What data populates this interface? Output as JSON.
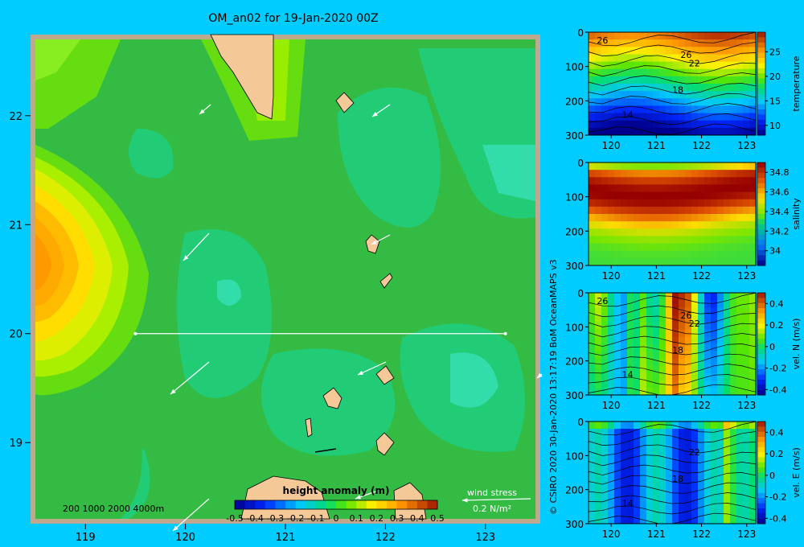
{
  "title": "OM_an02 for 19-Jan-2020 00Z",
  "credit": "© CSIRO 2020   30-Jan-2020 13:17:19 BoM OceanMAPS v3",
  "colors": {
    "background": "#00ccff",
    "frame": "#c0a88c",
    "land": "#f5c898",
    "land_dark": "#c8a888",
    "arrow": "#ffffff"
  },
  "chart_data": [
    {
      "type": "heatmap",
      "name": "map",
      "xlim": [
        118.5,
        123.5
      ],
      "ylim": [
        18.3,
        22.7
      ],
      "xticks": [
        119,
        120,
        121,
        122,
        123
      ],
      "yticks": [
        19,
        20,
        21,
        22
      ],
      "colorbar": {
        "label": "height anomaly (m)",
        "range": [
          -0.5,
          0.5
        ],
        "ticks": [
          "-0.5",
          "-0.4",
          "-0.3",
          "-0.2",
          "-0.1",
          "0",
          "0.1",
          "0.2",
          "0.3",
          "0.4",
          "0.5"
        ]
      },
      "depth_legend": "200  1000  2000  4000m",
      "wind_stress_label": "wind stress",
      "wind_stress_scale": "0.2 N/m²",
      "section_line": {
        "lat": 20.0,
        "lon": [
          119.5,
          123.2
        ]
      }
    },
    {
      "type": "heatmap",
      "name": "temperature",
      "ylabel": "temperature",
      "ylim": [
        300,
        0
      ],
      "yticks": [
        0,
        100,
        200,
        300
      ],
      "xticks": [
        120,
        121,
        122,
        123
      ],
      "colorbar_range": [
        8,
        29
      ],
      "colorbar_ticks": [
        "10",
        "15",
        "20",
        "25"
      ],
      "contour_labels": [
        "26",
        "26",
        "22",
        "18",
        "14"
      ]
    },
    {
      "type": "heatmap",
      "name": "salinity",
      "ylabel": "salinity",
      "ylim": [
        300,
        0
      ],
      "yticks": [
        0,
        100,
        200,
        300
      ],
      "xticks": [
        120,
        121,
        122,
        123
      ],
      "colorbar_range": [
        33.85,
        34.9
      ],
      "colorbar_ticks": [
        "34",
        "34.2",
        "34.4",
        "34.6",
        "34.8"
      ]
    },
    {
      "type": "heatmap",
      "name": "velN",
      "ylabel": "vel. N (m/s)",
      "ylim": [
        300,
        0
      ],
      "yticks": [
        0,
        100,
        200,
        300
      ],
      "xticks": [
        120,
        121,
        122,
        123
      ],
      "colorbar_range": [
        -0.45,
        0.5
      ],
      "colorbar_ticks": [
        "-0.4",
        "-0.2",
        "0",
        "0.2",
        "0.4"
      ],
      "contour_labels": [
        "26",
        "26",
        "22",
        "18",
        "14"
      ]
    },
    {
      "type": "heatmap",
      "name": "velE",
      "ylabel": "vel. E (m/s)",
      "ylim": [
        300,
        0
      ],
      "yticks": [
        0,
        100,
        200,
        300
      ],
      "xticks": [
        120,
        121,
        122,
        123
      ],
      "colorbar_range": [
        -0.45,
        0.5
      ],
      "colorbar_ticks": [
        "-0.4",
        "-0.2",
        "0",
        "0.2",
        "0.4"
      ],
      "contour_labels": [
        "22",
        "18",
        "14"
      ]
    }
  ]
}
